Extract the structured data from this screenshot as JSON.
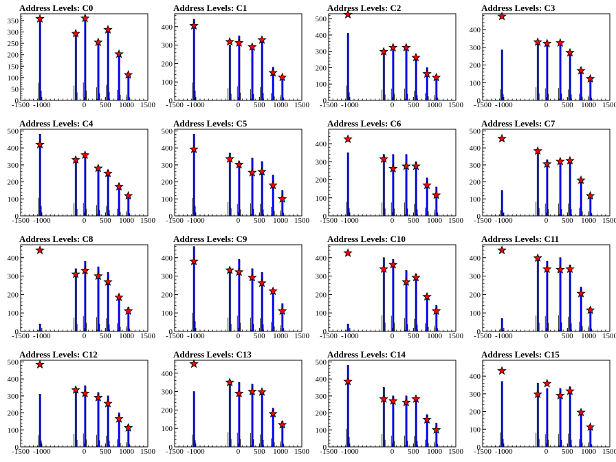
{
  "chart_data": [
    {
      "title": "Address Levels: C0",
      "ylim": [
        0,
        380
      ],
      "yticks": [
        0,
        50,
        100,
        150,
        200,
        250,
        300,
        350
      ],
      "peaks": [
        {
          "x": -1045,
          "y": 358
        },
        {
          "x": -200,
          "y": 293
        },
        {
          "x": 20,
          "y": 360
        },
        {
          "x": 330,
          "y": 255
        },
        {
          "x": 560,
          "y": 310
        },
        {
          "x": 820,
          "y": 203
        },
        {
          "x": 1040,
          "y": 112
        }
      ],
      "bars": [
        {
          "x": -1045,
          "y": 350
        },
        {
          "x": -200,
          "y": 295
        },
        {
          "x": 20,
          "y": 360
        },
        {
          "x": 330,
          "y": 260
        },
        {
          "x": 560,
          "y": 310
        },
        {
          "x": 820,
          "y": 205
        },
        {
          "x": 1040,
          "y": 115
        }
      ]
    },
    {
      "title": "Address Levels: C1",
      "ylim": [
        0,
        470
      ],
      "yticks": [
        0,
        100,
        200,
        300,
        400
      ],
      "peaks": [
        {
          "x": -1045,
          "y": 405
        },
        {
          "x": -200,
          "y": 318
        },
        {
          "x": 20,
          "y": 312
        },
        {
          "x": 330,
          "y": 290
        },
        {
          "x": 560,
          "y": 328
        },
        {
          "x": 820,
          "y": 150
        },
        {
          "x": 1040,
          "y": 125
        }
      ],
      "bars": [
        {
          "x": -1045,
          "y": 440
        },
        {
          "x": -200,
          "y": 300
        },
        {
          "x": 20,
          "y": 350
        },
        {
          "x": 330,
          "y": 280
        },
        {
          "x": 560,
          "y": 330
        },
        {
          "x": 820,
          "y": 180
        },
        {
          "x": 1040,
          "y": 130
        }
      ]
    },
    {
      "title": "Address Levels: C2",
      "ylim": [
        0,
        530
      ],
      "yticks": [
        0,
        100,
        200,
        300,
        400,
        500
      ],
      "peaks": [
        {
          "x": -1045,
          "y": 525
        },
        {
          "x": -200,
          "y": 298
        },
        {
          "x": 20,
          "y": 323
        },
        {
          "x": 330,
          "y": 323
        },
        {
          "x": 560,
          "y": 262
        },
        {
          "x": 820,
          "y": 162
        },
        {
          "x": 1040,
          "y": 140
        }
      ],
      "bars": [
        {
          "x": -1045,
          "y": 410
        },
        {
          "x": -200,
          "y": 300
        },
        {
          "x": 20,
          "y": 330
        },
        {
          "x": 330,
          "y": 330
        },
        {
          "x": 560,
          "y": 265
        },
        {
          "x": 820,
          "y": 200
        },
        {
          "x": 1040,
          "y": 150
        }
      ]
    },
    {
      "title": "Address Levels: C3",
      "ylim": [
        0,
        490
      ],
      "yticks": [
        0,
        100,
        200,
        300,
        400
      ],
      "peaks": [
        {
          "x": -1045,
          "y": 475
        },
        {
          "x": -200,
          "y": 330
        },
        {
          "x": 20,
          "y": 322
        },
        {
          "x": 330,
          "y": 325
        },
        {
          "x": 560,
          "y": 270
        },
        {
          "x": 820,
          "y": 168
        },
        {
          "x": 1040,
          "y": 122
        }
      ],
      "bars": [
        {
          "x": -1045,
          "y": 285
        },
        {
          "x": -200,
          "y": 335
        },
        {
          "x": 20,
          "y": 310
        },
        {
          "x": 330,
          "y": 320
        },
        {
          "x": 560,
          "y": 280
        },
        {
          "x": 820,
          "y": 170
        },
        {
          "x": 1040,
          "y": 125
        }
      ]
    },
    {
      "title": "Address Levels: C4",
      "ylim": [
        0,
        510
      ],
      "yticks": [
        0,
        100,
        200,
        300,
        400,
        500
      ],
      "peaks": [
        {
          "x": -1045,
          "y": 420
        },
        {
          "x": -200,
          "y": 330
        },
        {
          "x": 20,
          "y": 358
        },
        {
          "x": 330,
          "y": 280
        },
        {
          "x": 560,
          "y": 250
        },
        {
          "x": 820,
          "y": 172
        },
        {
          "x": 1040,
          "y": 118
        }
      ],
      "bars": [
        {
          "x": -1045,
          "y": 480
        },
        {
          "x": -200,
          "y": 340
        },
        {
          "x": 20,
          "y": 350
        },
        {
          "x": 330,
          "y": 290
        },
        {
          "x": 560,
          "y": 270
        },
        {
          "x": 820,
          "y": 190
        },
        {
          "x": 1040,
          "y": 125
        }
      ]
    },
    {
      "title": "Address Levels: C5",
      "ylim": [
        0,
        510
      ],
      "yticks": [
        0,
        100,
        200,
        300,
        400,
        500
      ],
      "peaks": [
        {
          "x": -1045,
          "y": 392
        },
        {
          "x": -200,
          "y": 335
        },
        {
          "x": 20,
          "y": 302
        },
        {
          "x": 330,
          "y": 255
        },
        {
          "x": 560,
          "y": 260
        },
        {
          "x": 820,
          "y": 180
        },
        {
          "x": 1040,
          "y": 100
        }
      ],
      "bars": [
        {
          "x": -1045,
          "y": 480
        },
        {
          "x": -200,
          "y": 370
        },
        {
          "x": 20,
          "y": 320
        },
        {
          "x": 330,
          "y": 340
        },
        {
          "x": 560,
          "y": 320
        },
        {
          "x": 820,
          "y": 240
        },
        {
          "x": 1040,
          "y": 150
        }
      ]
    },
    {
      "title": "Address Levels: C6",
      "ylim": [
        0,
        480
      ],
      "yticks": [
        0,
        100,
        200,
        300,
        400
      ],
      "peaks": [
        {
          "x": -1045,
          "y": 425
        },
        {
          "x": -200,
          "y": 315
        },
        {
          "x": 20,
          "y": 262
        },
        {
          "x": 330,
          "y": 275
        },
        {
          "x": 560,
          "y": 275
        },
        {
          "x": 820,
          "y": 170
        },
        {
          "x": 1040,
          "y": 115
        }
      ],
      "bars": [
        {
          "x": -1045,
          "y": 350
        },
        {
          "x": -200,
          "y": 340
        },
        {
          "x": 20,
          "y": 340
        },
        {
          "x": 330,
          "y": 340
        },
        {
          "x": 560,
          "y": 300
        },
        {
          "x": 820,
          "y": 210
        },
        {
          "x": 1040,
          "y": 160
        }
      ]
    },
    {
      "title": "Address Levels: C7",
      "ylim": [
        0,
        510
      ],
      "yticks": [
        0,
        100,
        200,
        300,
        400,
        500
      ],
      "peaks": [
        {
          "x": -1045,
          "y": 455
        },
        {
          "x": -200,
          "y": 382
        },
        {
          "x": 20,
          "y": 305
        },
        {
          "x": 330,
          "y": 320
        },
        {
          "x": 560,
          "y": 325
        },
        {
          "x": 820,
          "y": 210
        },
        {
          "x": 1040,
          "y": 118
        }
      ],
      "bars": [
        {
          "x": -1045,
          "y": 150
        },
        {
          "x": -200,
          "y": 380
        },
        {
          "x": 20,
          "y": 330
        },
        {
          "x": 330,
          "y": 330
        },
        {
          "x": 560,
          "y": 330
        },
        {
          "x": 820,
          "y": 220
        },
        {
          "x": 1040,
          "y": 130
        }
      ]
    },
    {
      "title": "Address Levels: C8",
      "ylim": [
        0,
        470
      ],
      "yticks": [
        0,
        100,
        200,
        300,
        400
      ],
      "peaks": [
        {
          "x": -1045,
          "y": 440
        },
        {
          "x": -200,
          "y": 310
        },
        {
          "x": 20,
          "y": 330
        },
        {
          "x": 330,
          "y": 300
        },
        {
          "x": 560,
          "y": 268
        },
        {
          "x": 820,
          "y": 185
        },
        {
          "x": 1040,
          "y": 110
        }
      ],
      "bars": [
        {
          "x": -1045,
          "y": 40
        },
        {
          "x": -200,
          "y": 340
        },
        {
          "x": 20,
          "y": 380
        },
        {
          "x": 330,
          "y": 350
        },
        {
          "x": 560,
          "y": 320
        },
        {
          "x": 820,
          "y": 200
        },
        {
          "x": 1040,
          "y": 130
        }
      ]
    },
    {
      "title": "Address Levels: C9",
      "ylim": [
        0,
        470
      ],
      "yticks": [
        0,
        100,
        200,
        300,
        400
      ],
      "peaks": [
        {
          "x": -1045,
          "y": 380
        },
        {
          "x": -200,
          "y": 332
        },
        {
          "x": 20,
          "y": 322
        },
        {
          "x": 330,
          "y": 292
        },
        {
          "x": 560,
          "y": 262
        },
        {
          "x": 820,
          "y": 218
        },
        {
          "x": 1040,
          "y": 110
        }
      ],
      "bars": [
        {
          "x": -1045,
          "y": 460
        },
        {
          "x": -200,
          "y": 340
        },
        {
          "x": 20,
          "y": 390
        },
        {
          "x": 330,
          "y": 340
        },
        {
          "x": 560,
          "y": 320
        },
        {
          "x": 820,
          "y": 230
        },
        {
          "x": 1040,
          "y": 150
        }
      ]
    },
    {
      "title": "Address Levels: C10",
      "ylim": [
        0,
        470
      ],
      "yticks": [
        0,
        100,
        200,
        300,
        400
      ],
      "peaks": [
        {
          "x": -1045,
          "y": 425
        },
        {
          "x": -200,
          "y": 338
        },
        {
          "x": 20,
          "y": 362
        },
        {
          "x": 330,
          "y": 268
        },
        {
          "x": 560,
          "y": 292
        },
        {
          "x": 820,
          "y": 188
        },
        {
          "x": 1040,
          "y": 110
        }
      ],
      "bars": [
        {
          "x": -1045,
          "y": 40
        },
        {
          "x": -200,
          "y": 400
        },
        {
          "x": 20,
          "y": 390
        },
        {
          "x": 330,
          "y": 330
        },
        {
          "x": 560,
          "y": 310
        },
        {
          "x": 820,
          "y": 200
        },
        {
          "x": 1040,
          "y": 140
        }
      ]
    },
    {
      "title": "Address Levels: C11",
      "ylim": [
        0,
        470
      ],
      "yticks": [
        0,
        100,
        200,
        300,
        400
      ],
      "peaks": [
        {
          "x": -1045,
          "y": 440
        },
        {
          "x": -200,
          "y": 398
        },
        {
          "x": 20,
          "y": 338
        },
        {
          "x": 330,
          "y": 335
        },
        {
          "x": 560,
          "y": 338
        },
        {
          "x": 820,
          "y": 205
        },
        {
          "x": 1040,
          "y": 115
        }
      ],
      "bars": [
        {
          "x": -1045,
          "y": 70
        },
        {
          "x": -200,
          "y": 390
        },
        {
          "x": 20,
          "y": 380
        },
        {
          "x": 330,
          "y": 400
        },
        {
          "x": 560,
          "y": 360
        },
        {
          "x": 820,
          "y": 240
        },
        {
          "x": 1040,
          "y": 130
        }
      ]
    },
    {
      "title": "Address Levels: C12",
      "ylim": [
        0,
        510
      ],
      "yticks": [
        0,
        100,
        200,
        300,
        400,
        500
      ],
      "peaks": [
        {
          "x": -1045,
          "y": 485
        },
        {
          "x": -200,
          "y": 335
        },
        {
          "x": 20,
          "y": 315
        },
        {
          "x": 330,
          "y": 290
        },
        {
          "x": 560,
          "y": 255
        },
        {
          "x": 820,
          "y": 165
        },
        {
          "x": 1040,
          "y": 112
        }
      ],
      "bars": [
        {
          "x": -1045,
          "y": 310
        },
        {
          "x": -200,
          "y": 350
        },
        {
          "x": 20,
          "y": 360
        },
        {
          "x": 330,
          "y": 320
        },
        {
          "x": 560,
          "y": 300
        },
        {
          "x": 820,
          "y": 200
        },
        {
          "x": 1040,
          "y": 130
        }
      ]
    },
    {
      "title": "Address Levels: C13",
      "ylim": [
        0,
        470
      ],
      "yticks": [
        0,
        100,
        200,
        300,
        400
      ],
      "peaks": [
        {
          "x": -1045,
          "y": 450
        },
        {
          "x": -200,
          "y": 350
        },
        {
          "x": 20,
          "y": 290
        },
        {
          "x": 330,
          "y": 300
        },
        {
          "x": 560,
          "y": 298
        },
        {
          "x": 820,
          "y": 180
        },
        {
          "x": 1040,
          "y": 120
        }
      ],
      "bars": [
        {
          "x": -1045,
          "y": 300
        },
        {
          "x": -200,
          "y": 360
        },
        {
          "x": 20,
          "y": 350
        },
        {
          "x": 330,
          "y": 340
        },
        {
          "x": 560,
          "y": 310
        },
        {
          "x": 820,
          "y": 210
        },
        {
          "x": 1040,
          "y": 140
        }
      ]
    },
    {
      "title": "Address Levels: C14",
      "ylim": [
        0,
        510
      ],
      "yticks": [
        0,
        100,
        200,
        300,
        400,
        500
      ],
      "peaks": [
        {
          "x": -1045,
          "y": 385
        },
        {
          "x": -200,
          "y": 282
        },
        {
          "x": 20,
          "y": 270
        },
        {
          "x": 330,
          "y": 262
        },
        {
          "x": 560,
          "y": 282
        },
        {
          "x": 820,
          "y": 160
        },
        {
          "x": 1040,
          "y": 100
        }
      ],
      "bars": [
        {
          "x": -1045,
          "y": 480
        },
        {
          "x": -200,
          "y": 350
        },
        {
          "x": 20,
          "y": 300
        },
        {
          "x": 330,
          "y": 300
        },
        {
          "x": 560,
          "y": 290
        },
        {
          "x": 820,
          "y": 190
        },
        {
          "x": 1040,
          "y": 140
        }
      ]
    },
    {
      "title": "Address Levels: C15",
      "ylim": [
        0,
        490
      ],
      "yticks": [
        0,
        100,
        200,
        300,
        400
      ],
      "peaks": [
        {
          "x": -1045,
          "y": 430
        },
        {
          "x": -200,
          "y": 298
        },
        {
          "x": 20,
          "y": 358
        },
        {
          "x": 330,
          "y": 290
        },
        {
          "x": 560,
          "y": 315
        },
        {
          "x": 820,
          "y": 195
        },
        {
          "x": 1040,
          "y": 112
        }
      ],
      "bars": [
        {
          "x": -1045,
          "y": 370
        },
        {
          "x": -200,
          "y": 360
        },
        {
          "x": 20,
          "y": 330
        },
        {
          "x": 330,
          "y": 330
        },
        {
          "x": 560,
          "y": 340
        },
        {
          "x": 820,
          "y": 200
        },
        {
          "x": 1040,
          "y": 120
        }
      ]
    }
  ],
  "xaxis": {
    "xlim": [
      -1500,
      1500
    ],
    "xticks": [
      -1500,
      -1000,
      0,
      500,
      1000,
      1500
    ],
    "tick_labels": [
      "-1500",
      "-1000",
      "0",
      "500",
      "1000",
      "1500"
    ]
  },
  "colors": {
    "bar": "#0000ff",
    "marker": "#ff0000",
    "marker_outline": "#000000",
    "axis": "#000000"
  },
  "marker_icon": "red-star-icon"
}
